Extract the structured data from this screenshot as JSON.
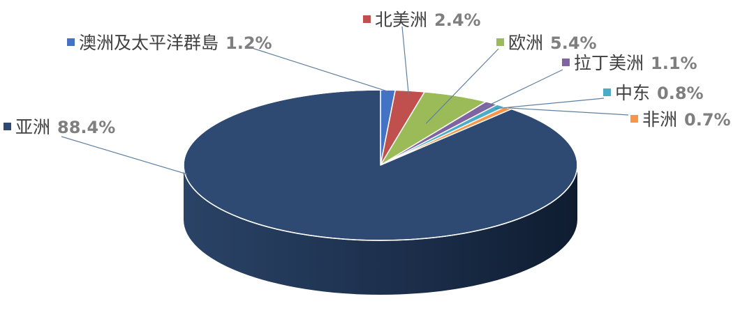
{
  "chart_data": {
    "type": "pie",
    "title": "",
    "start_category": "澳洲及太平洋群島",
    "slices": [
      {
        "name": "澳洲及太平洋群島",
        "value": 1.2,
        "label": "1.2%",
        "color": "#4472c4"
      },
      {
        "name": "北美洲",
        "value": 2.4,
        "label": "2.4%",
        "color": "#c0504d"
      },
      {
        "name": "欧洲",
        "value": 5.4,
        "label": "5.4%",
        "color": "#9bbb59"
      },
      {
        "name": "拉丁美洲",
        "value": 1.1,
        "label": "1.1%",
        "color": "#8064a2"
      },
      {
        "name": "中东",
        "value": 0.8,
        "label": "0.8%",
        "color": "#4bacc6"
      },
      {
        "name": "非洲",
        "value": 0.7,
        "label": "0.7%",
        "color": "#f79646"
      },
      {
        "name": "亚洲",
        "value": 88.4,
        "label": "88.4%",
        "color": "#2e4a72"
      }
    ]
  }
}
